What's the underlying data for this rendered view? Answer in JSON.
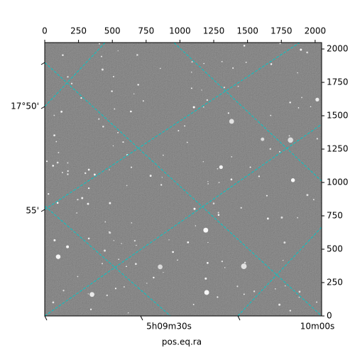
{
  "chart_data": {
    "type": "image",
    "xlabel": "pos.eq.ra",
    "xlim": [
      0,
      2048
    ],
    "xticks": [
      0,
      250,
      500,
      750,
      1000,
      1250,
      1500,
      1750,
      2000
    ],
    "y2lim": [
      0,
      2048
    ],
    "y2ticks": [
      0,
      250,
      500,
      750,
      1000,
      1250,
      1500,
      1750,
      2000
    ],
    "ra_labels": [
      "5h09m30s",
      "10m00s"
    ],
    "dec_labels": [
      "17°50'",
      "55'"
    ],
    "grid_color": "#00c8c8"
  }
}
